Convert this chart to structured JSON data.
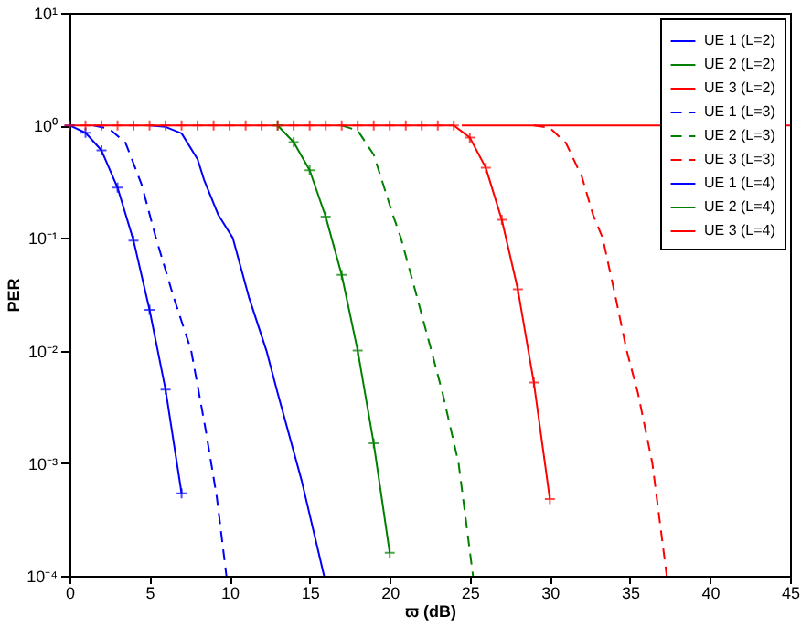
{
  "chart_data": {
    "type": "line",
    "xlabel": "ϖ (dB)",
    "ylabel": "PER",
    "log": "y",
    "legend": "top right",
    "grid": false,
    "xlim": [
      0,
      45
    ],
    "xticks": [
      0,
      5,
      10,
      15,
      20,
      25,
      30,
      35,
      40,
      45
    ],
    "ylim": [
      0.0001,
      10
    ],
    "yticks": [
      {
        "value": 0.0001,
        "label": "10⁻⁴"
      },
      {
        "value": 0.001,
        "label": "10⁻³"
      },
      {
        "value": 0.01,
        "label": "10⁻²"
      },
      {
        "value": 0.1,
        "label": "10⁻¹"
      },
      {
        "value": 1,
        "label": "10⁰"
      },
      {
        "value": 10,
        "label": "10¹"
      }
    ],
    "series": [
      {
        "name": "UE 1 (L=2)",
        "color": "#0000ff",
        "line_style": "solid",
        "marker": "none",
        "x": [
          5,
          6,
          7,
          8,
          8.4,
          9.3,
          10.2,
          11.2,
          12.3,
          13,
          14.5,
          15.9
        ],
        "values": [
          1,
          0.97,
          0.85,
          0.5,
          0.33,
          0.16,
          0.1,
          0.03,
          0.01,
          0.0042,
          0.0007,
          0.0001
        ]
      },
      {
        "name": "UE 2 (L=2)",
        "color": "#008000",
        "line_style": "solid",
        "marker": "none"
      },
      {
        "name": "UE 3 (L=2)",
        "color": "#ff0000",
        "line_style": "solid",
        "marker": "none",
        "x": [
          24.5,
          45
        ],
        "values": [
          1,
          1
        ]
      },
      {
        "name": "UE 1 (L=3)",
        "color": "#0000ff",
        "line_style": "dashed",
        "marker": "none",
        "x": [
          1.5,
          2.5,
          3.5,
          4.5,
          5.4,
          6.5,
          7.6,
          8.5,
          9.2,
          9.8
        ],
        "values": [
          1,
          0.93,
          0.7,
          0.3,
          0.1,
          0.03,
          0.01,
          0.002,
          0.0005,
          0.0001
        ]
      },
      {
        "name": "UE 2 (L=3)",
        "color": "#008000",
        "line_style": "dashed",
        "marker": "none",
        "x": [
          17,
          18,
          19,
          20.2,
          20.7,
          21.7,
          22.6,
          23.3,
          24.3,
          25.2
        ],
        "values": [
          1,
          0.9,
          0.55,
          0.16,
          0.1,
          0.03,
          0.01,
          0.0042,
          0.001,
          0.0001
        ]
      },
      {
        "name": "UE 3 (L=3)",
        "color": "#ff0000",
        "line_style": "dashed",
        "marker": "none",
        "x": [
          29,
          30,
          31,
          32,
          32.7,
          33.3,
          34.1,
          34.8,
          35.5,
          36.4,
          37.3
        ],
        "values": [
          1,
          0.95,
          0.7,
          0.35,
          0.16,
          0.1,
          0.03,
          0.01,
          0.0042,
          0.001,
          0.0001
        ]
      },
      {
        "name": "UE 1 (L=4)",
        "color": "#0000ff",
        "line_style": "solid",
        "marker": "cross",
        "x": [
          0,
          1,
          2,
          3,
          4,
          5,
          6,
          7
        ],
        "values": [
          1,
          0.86,
          0.6,
          0.28,
          0.095,
          0.023,
          0.0045,
          0.00054
        ]
      },
      {
        "name": "UE 2 (L=4)",
        "color": "#008000",
        "line_style": "solid",
        "marker": "cross",
        "x": [
          13,
          14,
          15,
          16,
          17,
          18,
          19,
          20
        ],
        "values": [
          1,
          0.71,
          0.4,
          0.155,
          0.047,
          0.01,
          0.0015,
          0.00016
        ]
      },
      {
        "name": "UE 3 (L=4)",
        "color": "#ff0000",
        "line_style": "solid",
        "marker": "cross",
        "x": [
          0,
          1,
          2,
          3,
          4,
          5,
          6,
          7,
          8,
          9,
          10,
          11,
          12,
          13,
          14,
          15,
          16,
          17,
          18,
          19,
          20,
          21,
          22,
          23,
          24,
          25,
          26,
          27,
          28,
          29,
          30
        ],
        "values": [
          1,
          1,
          1,
          1,
          1,
          1,
          1,
          1,
          1,
          1,
          1,
          1,
          1,
          1,
          1,
          1,
          1,
          1,
          1,
          1,
          1,
          1,
          1,
          1,
          1,
          0.78,
          0.42,
          0.145,
          0.035,
          0.0052,
          0.00048
        ]
      }
    ]
  }
}
